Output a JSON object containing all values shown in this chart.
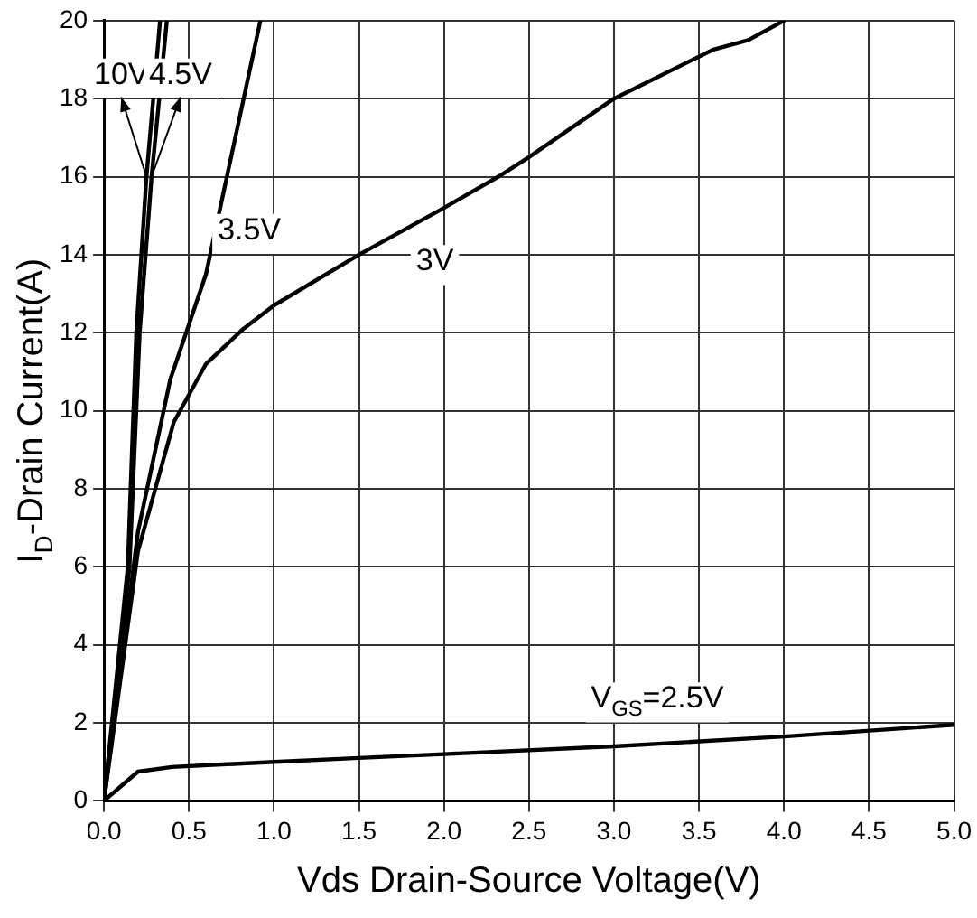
{
  "chart_data": {
    "type": "line",
    "xlabel": "Vds Drain-Source Voltage(V)",
    "ylabel": "I$_{D}$-Drain Current(A)",
    "xlim": [
      0,
      5
    ],
    "ylim": [
      0,
      20
    ],
    "xticks": [
      {
        "value": 0,
        "label": "0.0"
      },
      {
        "value": 0.5,
        "label": "0.5"
      },
      {
        "value": 1,
        "label": "1.0"
      },
      {
        "value": 1.5,
        "label": "1.5"
      },
      {
        "value": 2,
        "label": "2.0"
      },
      {
        "value": 2.5,
        "label": "2.5"
      },
      {
        "value": 3,
        "label": "3.0"
      },
      {
        "value": 3.5,
        "label": "3.5"
      },
      {
        "value": 4,
        "label": "4.0"
      },
      {
        "value": 4.5,
        "label": "4.5"
      },
      {
        "value": 5,
        "label": "5.0"
      }
    ],
    "yticks": [
      0,
      2,
      4,
      6,
      8,
      10,
      12,
      14,
      16,
      18,
      20
    ],
    "grid": true,
    "legend": false,
    "marker": "none",
    "line_style": "solid",
    "series": [
      {
        "color": "#000000",
        "x": [
          0,
          0.14,
          0.19,
          0.25,
          0.33
        ],
        "values": [
          0,
          6,
          12,
          16,
          20
        ]
      },
      {
        "color": "#000000",
        "x": [
          0,
          0.15,
          0.21,
          0.28,
          0.37
        ],
        "values": [
          0,
          6,
          12,
          16,
          20
        ]
      },
      {
        "color": "#000000",
        "x": [
          0,
          0.2,
          0.39,
          0.6,
          0.92
        ],
        "values": [
          0,
          6.9,
          10.8,
          13.5,
          20
        ]
      },
      {
        "color": "#000000",
        "x": [
          0,
          0.2,
          0.41,
          0.6,
          0.82,
          1,
          1.5,
          2,
          2.32,
          2.5,
          3,
          3.58,
          3.79,
          4
        ],
        "values": [
          0,
          6.4,
          9.7,
          11.2,
          12.1,
          12.7,
          14,
          15.2,
          16,
          16.5,
          18,
          19.25,
          19.5,
          20
        ]
      },
      {
        "color": "#000000",
        "x": [
          0,
          0.2,
          0.4,
          1,
          1.5,
          2,
          3,
          4,
          5
        ],
        "values": [
          0,
          0.75,
          0.87,
          1,
          1.1,
          1.2,
          1.4,
          1.65,
          1.95
        ]
      }
    ],
    "annotations": [
      {
        "text": "10V",
        "x": 0.25,
        "y": 16
      },
      {
        "text": "4.5V",
        "x": 0.28,
        "y": 16
      },
      {
        "text": "3.5V",
        "x": 0.6,
        "y": 13.5
      },
      {
        "text": "3V",
        "x": 1.5,
        "y": 14
      },
      {
        "text": "V$_{GS}$=2.5V",
        "x": 3,
        "y": 1.4
      }
    ]
  }
}
